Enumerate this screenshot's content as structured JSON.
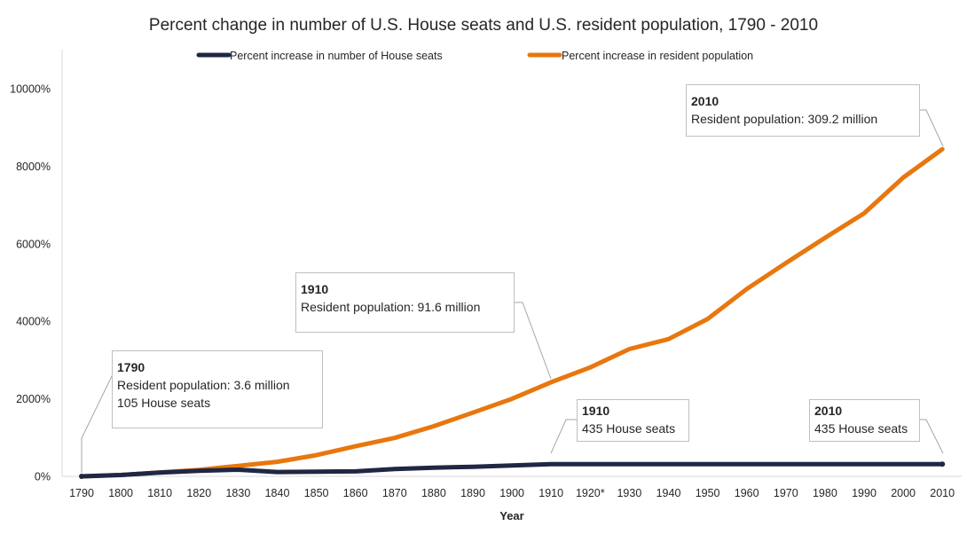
{
  "chart_data": {
    "type": "line",
    "title": "Percent change in number of U.S. House seats and U.S. resident population, 1790 - 2010",
    "xlabel": "Year",
    "ylabel": "",
    "ylim": [
      0,
      10000
    ],
    "yticks": [
      "0%",
      "2000%",
      "4000%",
      "6000%",
      "8000%",
      "10000%"
    ],
    "ytick_values": [
      0,
      2000,
      4000,
      6000,
      8000,
      10000
    ],
    "categories": [
      "1790",
      "1800",
      "1810",
      "1820",
      "1830",
      "1840",
      "1850",
      "1860",
      "1870",
      "1880",
      "1890",
      "1900",
      "1910",
      "1920*",
      "1930",
      "1940",
      "1950",
      "1960",
      "1970",
      "1980",
      "1990",
      "2000",
      "2010"
    ],
    "grid": false,
    "legend": "top",
    "series": [
      {
        "name": "Percent increase in number of House seats",
        "color": "#1f2744",
        "values": [
          0,
          35,
          98,
          142,
          172,
          112,
          121,
          129,
          189,
          225,
          245,
          282,
          314,
          314,
          314,
          314,
          314,
          314,
          314,
          314,
          314,
          314,
          314
        ]
      },
      {
        "name": "Percent increase in resident population",
        "color": "#e8770e",
        "values": [
          0,
          35,
          100,
          166,
          270,
          375,
          548,
          775,
          991,
          1293,
          1644,
          1999,
          2428,
          2811,
          3284,
          3540,
          4059,
          4833,
          5501,
          6153,
          6785,
          7707,
          8439
        ]
      }
    ],
    "annotations": [
      {
        "year": "1790",
        "lines": [
          "Resident population: 3.6 million",
          "105 House seats"
        ]
      },
      {
        "year": "1910",
        "lines": [
          "Resident population: 91.6 million"
        ]
      },
      {
        "year": "2010",
        "lines": [
          "Resident population: 309.2 million"
        ]
      },
      {
        "year": "1910",
        "lines": [
          "435 House seats"
        ]
      },
      {
        "year": "2010",
        "lines": [
          "435 House seats"
        ]
      }
    ]
  }
}
